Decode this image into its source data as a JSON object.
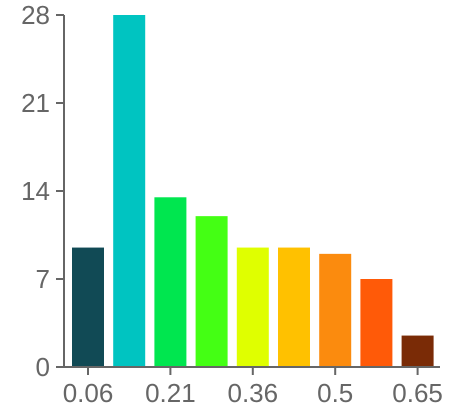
{
  "chart_data": {
    "type": "bar",
    "title": "",
    "xlabel": "",
    "ylabel": "",
    "ylim": [
      0,
      28
    ],
    "y_ticks": [
      "0",
      "7",
      "14",
      "21",
      "28"
    ],
    "x_tick_labels": [
      "0.06",
      "0.21",
      "0.36",
      "0.5",
      "0.65"
    ],
    "x_tick_bar_index": [
      0,
      2,
      4,
      6,
      8
    ],
    "values": [
      9.5,
      28,
      13.5,
      12,
      9.5,
      9.5,
      9,
      7,
      2.5
    ],
    "colors": [
      "#114a55",
      "#00c4c1",
      "#00e64f",
      "#44ff14",
      "#dfff00",
      "#ffc100",
      "#fb8b0e",
      "#ff5a08",
      "#7a2b06"
    ],
    "grid": false,
    "legend": "none"
  }
}
